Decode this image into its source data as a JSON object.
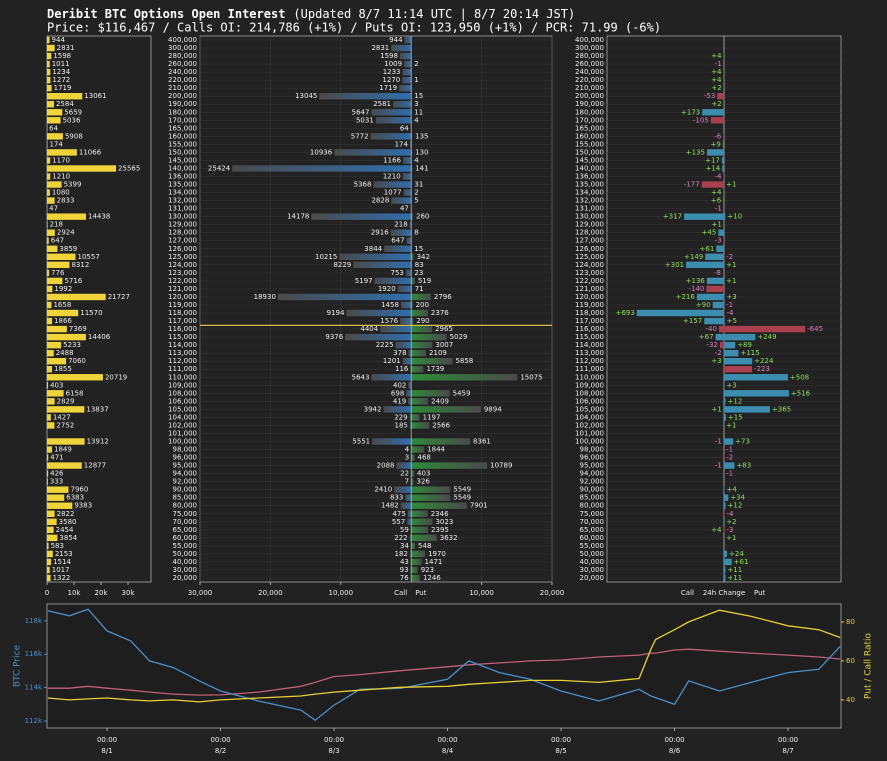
{
  "title": "Deribit BTC Options Open Interest",
  "updated": "(Updated 8/7 11:14 UTC | 8/7 20:14 JST)",
  "subtitle": "Price: $116,467 / Calls OI: 214,786 (+1%) / Puts OI: 123,950 (+1%) / PCR: 71.99 (-6%)",
  "price_line": 116467,
  "price_line_color": "#e8d44d",
  "strikes": [
    {
      "value": 400000,
      "label": "400,000"
    },
    {
      "value": 300000,
      "label": "300,000"
    },
    {
      "value": 280000,
      "label": "280,000"
    },
    {
      "value": 260000,
      "label": "260,000"
    },
    {
      "value": 240000,
      "label": "240,000"
    },
    {
      "value": 220000,
      "label": "220,000"
    },
    {
      "value": 210000,
      "label": "210,000"
    },
    {
      "value": 200000,
      "label": "200,000"
    },
    {
      "value": 190000,
      "label": "190,000"
    },
    {
      "value": 180000,
      "label": "180,000"
    },
    {
      "value": 170000,
      "label": "170,000"
    },
    {
      "value": 165000,
      "label": "165,000"
    },
    {
      "value": 160000,
      "label": "160,000"
    },
    {
      "value": 155000,
      "label": "155,000"
    },
    {
      "value": 150000,
      "label": "150,000"
    },
    {
      "value": 145000,
      "label": "145,000"
    },
    {
      "value": 140000,
      "label": "140,000"
    },
    {
      "value": 136000,
      "label": "136,000"
    },
    {
      "value": 135000,
      "label": "135,000"
    },
    {
      "value": 134000,
      "label": "134,000"
    },
    {
      "value": 132000,
      "label": "132,000"
    },
    {
      "value": 131000,
      "label": "131,000"
    },
    {
      "value": 130000,
      "label": "130,000"
    },
    {
      "value": 129000,
      "label": "129,000"
    },
    {
      "value": 128000,
      "label": "128,000"
    },
    {
      "value": 127000,
      "label": "127,000"
    },
    {
      "value": 126000,
      "label": "126,000"
    },
    {
      "value": 125000,
      "label": "125,000"
    },
    {
      "value": 124000,
      "label": "124,000"
    },
    {
      "value": 123000,
      "label": "123,000"
    },
    {
      "value": 122000,
      "label": "122,000"
    },
    {
      "value": 121000,
      "label": "121,000"
    },
    {
      "value": 120000,
      "label": "120,000"
    },
    {
      "value": 119000,
      "label": "119,000"
    },
    {
      "value": 118000,
      "label": "118,000"
    },
    {
      "value": 117000,
      "label": "117,000"
    },
    {
      "value": 116000,
      "label": "116,000"
    },
    {
      "value": 115000,
      "label": "115,000"
    },
    {
      "value": 114000,
      "label": "114,000"
    },
    {
      "value": 113000,
      "label": "113,000"
    },
    {
      "value": 112000,
      "label": "112,000"
    },
    {
      "value": 111000,
      "label": "111,000"
    },
    {
      "value": 110000,
      "label": "110,000"
    },
    {
      "value": 109000,
      "label": "109,000"
    },
    {
      "value": 108000,
      "label": "108,000"
    },
    {
      "value": 106000,
      "label": "106,000"
    },
    {
      "value": 105000,
      "label": "105,000"
    },
    {
      "value": 104000,
      "label": "104,000"
    },
    {
      "value": 102000,
      "label": "102,000"
    },
    {
      "value": 101000,
      "label": "101,000"
    },
    {
      "value": 100000,
      "label": "100,000"
    },
    {
      "value": 98000,
      "label": "98,000"
    },
    {
      "value": 96000,
      "label": "96,000"
    },
    {
      "value": 95000,
      "label": "95,000"
    },
    {
      "value": 94000,
      "label": "94,000"
    },
    {
      "value": 92000,
      "label": "92,000"
    },
    {
      "value": 90000,
      "label": "90,000"
    },
    {
      "value": 85000,
      "label": "85,000"
    },
    {
      "value": 80000,
      "label": "80,000"
    },
    {
      "value": 75000,
      "label": "75,000"
    },
    {
      "value": 70000,
      "label": "70,000"
    },
    {
      "value": 65000,
      "label": "65,000"
    },
    {
      "value": 60000,
      "label": "60,000"
    },
    {
      "value": 55000,
      "label": "55,000"
    },
    {
      "value": 50000,
      "label": "50,000"
    },
    {
      "value": 40000,
      "label": "40,000"
    },
    {
      "value": 30000,
      "label": "30,000"
    },
    {
      "value": 20000,
      "label": "20,000"
    }
  ],
  "chart_data": [
    {
      "type": "hbar",
      "color": "#f0d43a",
      "values": [
        944,
        2831,
        1598,
        1011,
        1234,
        1272,
        1719,
        13061,
        2584,
        5659,
        5036,
        64,
        5908,
        174,
        11066,
        1170,
        25565,
        1210,
        5399,
        1080,
        2833,
        47,
        14438,
        218,
        2924,
        647,
        3859,
        10557,
        8312,
        776,
        5716,
        1992,
        21727,
        1658,
        11570,
        1866,
        7369,
        14406,
        5233,
        2488,
        7060,
        1855,
        20719,
        403,
        6158,
        2829,
        13837,
        1427,
        2752,
        null,
        13912,
        1849,
        471,
        12877,
        426,
        333,
        7960,
        6383,
        9383,
        2822,
        3580,
        2454,
        3854,
        583,
        2153,
        1514,
        1017,
        1322
      ],
      "xlim": [
        0,
        38500
      ],
      "xticks": [
        0,
        {
          "value": 10000,
          "label": "10k"
        },
        {
          "value": 20000,
          "label": "20k"
        },
        {
          "value": 30000,
          "label": "30k"
        }
      ]
    },
    {
      "type": "butterfly",
      "call_label": "Call",
      "put_label": "Put",
      "call_colors": [
        "#4a4a4a",
        "#2f6fae"
      ],
      "put_colors": [
        "#2e8b3a",
        "#4a4a4a"
      ],
      "calls": [
        944,
        2831,
        1598,
        1009,
        1233,
        1270,
        1719,
        13045,
        2581,
        5647,
        5031,
        64,
        5772,
        174,
        10936,
        1166,
        25424,
        1210,
        5368,
        1077,
        2828,
        47,
        14178,
        218,
        2916,
        647,
        3844,
        10215,
        8229,
        753,
        5197,
        1920,
        18930,
        1458,
        9194,
        1576,
        4404,
        9376,
        2225,
        378,
        1201,
        116,
        5643,
        402,
        698,
        419,
        3942,
        229,
        185,
        null,
        5551,
        4,
        3,
        2088,
        22,
        7,
        2410,
        833,
        1482,
        475,
        557,
        59,
        222,
        34,
        182,
        43,
        93,
        76
      ],
      "puts": [
        null,
        null,
        null,
        2,
        null,
        1,
        null,
        15,
        3,
        11,
        4,
        null,
        135,
        null,
        130,
        4,
        141,
        null,
        31,
        2,
        5,
        null,
        260,
        null,
        8,
        null,
        15,
        342,
        83,
        23,
        519,
        71,
        2796,
        200,
        2376,
        290,
        2965,
        5029,
        3007,
        2109,
        5858,
        1739,
        15075,
        null,
        5459,
        2409,
        9894,
        1197,
        2566,
        null,
        8361,
        1844,
        468,
        10789,
        403,
        326,
        5549,
        5549,
        7901,
        2346,
        3023,
        2395,
        3632,
        548,
        1970,
        1471,
        923,
        1246
      ],
      "call_xlim": [
        0,
        30000
      ],
      "put_xlim": [
        0,
        20000
      ],
      "call_xticks": [
        {
          "value": 30000,
          "label": "30,000"
        },
        {
          "value": 20000,
          "label": "20,000"
        },
        {
          "value": 10000,
          "label": "10,000"
        }
      ],
      "put_xticks": [
        {
          "value": 10000,
          "label": "10,000"
        },
        {
          "value": 20000,
          "label": "20,000"
        }
      ],
      "grid": true
    },
    {
      "type": "change",
      "labels": [
        "Call",
        "24h Change",
        "Put"
      ],
      "pos_color": "#3b8eb0",
      "neg_color": "#a8404f",
      "pos_label_color": "#8ee05a",
      "neg_label_color": "#e27ac0",
      "xlim": [
        0,
        930
      ],
      "call_change": [
        null,
        null,
        4,
        -1,
        4,
        4,
        2,
        -53,
        2,
        173,
        -105,
        null,
        -6,
        9,
        135,
        17,
        14,
        -4,
        -177,
        4,
        6,
        -1,
        317,
        1,
        45,
        -3,
        61,
        149,
        301,
        -8,
        136,
        -140,
        216,
        90,
        693,
        157,
        -40,
        67,
        -32,
        -2,
        3,
        null,
        null,
        null,
        null,
        null,
        1,
        null,
        null,
        null,
        -1,
        null,
        null,
        -1,
        null,
        null,
        null,
        null,
        null,
        null,
        null,
        4,
        null,
        null,
        null,
        null,
        null,
        null
      ],
      "call_change_labels": [
        null,
        null,
        "+4",
        "-1",
        "+4",
        "+4",
        "+2",
        "-53",
        "+2",
        "+173",
        "-105",
        null,
        "-6",
        "+9",
        "+135",
        "+17",
        "+14",
        "-4",
        "-177",
        "+4",
        "+6",
        "-1",
        "+317",
        "+1",
        "+45",
        "-3",
        "+61",
        "+149",
        "+301",
        "-8",
        "+136",
        "-140",
        "+216",
        "+90",
        "+693",
        "+157",
        "-40",
        "+67",
        "-32",
        "-2",
        "+3",
        null,
        null,
        null,
        null,
        null,
        "+1",
        null,
        null,
        null,
        "-1",
        null,
        null,
        "-1",
        null,
        null,
        null,
        null,
        null,
        null,
        null,
        "+4",
        null,
        null,
        null,
        null,
        null,
        null
      ],
      "put_change": [
        null,
        null,
        null,
        null,
        null,
        null,
        null,
        null,
        null,
        null,
        null,
        null,
        null,
        null,
        null,
        null,
        null,
        null,
        1,
        null,
        null,
        null,
        10,
        null,
        null,
        null,
        null,
        -2,
        1,
        null,
        1,
        null,
        3,
        -1,
        -4,
        5,
        -645,
        249,
        89,
        115,
        224,
        -223,
        508,
        3,
        516,
        12,
        365,
        15,
        1,
        null,
        73,
        -1,
        -2,
        83,
        -1,
        null,
        4,
        34,
        12,
        -4,
        2,
        -3,
        1,
        null,
        24,
        61,
        11,
        11
      ],
      "put_change_labels": [
        null,
        null,
        null,
        null,
        null,
        null,
        null,
        null,
        null,
        null,
        null,
        null,
        null,
        null,
        null,
        null,
        null,
        null,
        "+1",
        null,
        null,
        null,
        "+10",
        null,
        null,
        null,
        null,
        "-2",
        "+1",
        null,
        "+1",
        null,
        "+3",
        "-1",
        "-4",
        "+5",
        "-645",
        "+249",
        "+89",
        "+115",
        "+224",
        "-223",
        "+508",
        "+3",
        "+516",
        "+12",
        "+365",
        "+15",
        "+1",
        null,
        "+73",
        "-1",
        "-2",
        "+83",
        "-1",
        null,
        "+4",
        "+34",
        "+12",
        "-4",
        "+2",
        "-3",
        "+1",
        null,
        "+24",
        "+61",
        "+11",
        "+11"
      ]
    },
    {
      "type": "line",
      "ylabel": "BTC Price",
      "y2label": "Put / Call Ratio",
      "ylabel_color": "#4a90c8",
      "y2label_color": "#e8d030",
      "x": [
        -12.5,
        -8,
        -4,
        0,
        5,
        9,
        14,
        19.5,
        24,
        32,
        41,
        44,
        48,
        53.5,
        62,
        72,
        76.5,
        83,
        89.5,
        96,
        104,
        112.5,
        115,
        116,
        120,
        123,
        129.5,
        136,
        144,
        150.5,
        155
      ],
      "xlim": [
        -12.7,
        155.2
      ],
      "xticks": [
        {
          "value": 0,
          "label": "00:00\n8/1"
        },
        {
          "value": 24,
          "label": "00:00\n8/2"
        },
        {
          "value": 48,
          "label": "00:00\n8/3"
        },
        {
          "value": 72,
          "label": "00:00\n8/4"
        },
        {
          "value": 96,
          "label": "00:00\n8/5"
        },
        {
          "value": 120,
          "label": "00:00\n8/6"
        },
        {
          "value": 144,
          "label": "00:00\n8/7"
        }
      ],
      "ylim": [
        111580,
        119010
      ],
      "yticks": [
        {
          "value": 112000,
          "label": "112k"
        },
        {
          "value": 114000,
          "label": "114k"
        },
        {
          "value": 116000,
          "label": "116k"
        },
        {
          "value": 118000,
          "label": "118k"
        }
      ],
      "y2lim": [
        25.6,
        89.2
      ],
      "y2ticks": [
        40,
        60,
        80
      ],
      "series": [
        {
          "color": "#c0607a",
          "axis": "y2",
          "values": [
            46,
            46,
            47,
            46,
            45,
            44,
            43,
            42.5,
            42.6,
            44,
            47,
            49,
            52,
            53,
            55,
            57,
            58,
            59,
            60,
            60.5,
            62,
            63,
            64,
            64,
            65.6,
            66,
            65,
            64,
            63,
            62,
            61
          ]
        },
        {
          "color": "#4a90c8",
          "values": [
            118600,
            118300,
            118700,
            117400,
            116800,
            115600,
            115200,
            114400,
            113800,
            113200,
            112650,
            112050,
            112950,
            113900,
            113950,
            114500,
            115600,
            114900,
            114500,
            113800,
            113200,
            113900,
            113500,
            113400,
            113000,
            114400,
            113800,
            114300,
            114900,
            115100,
            116467
          ]
        },
        {
          "color": "#e8d030",
          "axis": "y2",
          "values": [
            41,
            40,
            40.5,
            41,
            40,
            39.5,
            40,
            39,
            40,
            41,
            42,
            43,
            44,
            45,
            46.5,
            47,
            48,
            49,
            50,
            50,
            49,
            51,
            66,
            71,
            76,
            80,
            86,
            83,
            78,
            76,
            72
          ]
        }
      ]
    }
  ]
}
